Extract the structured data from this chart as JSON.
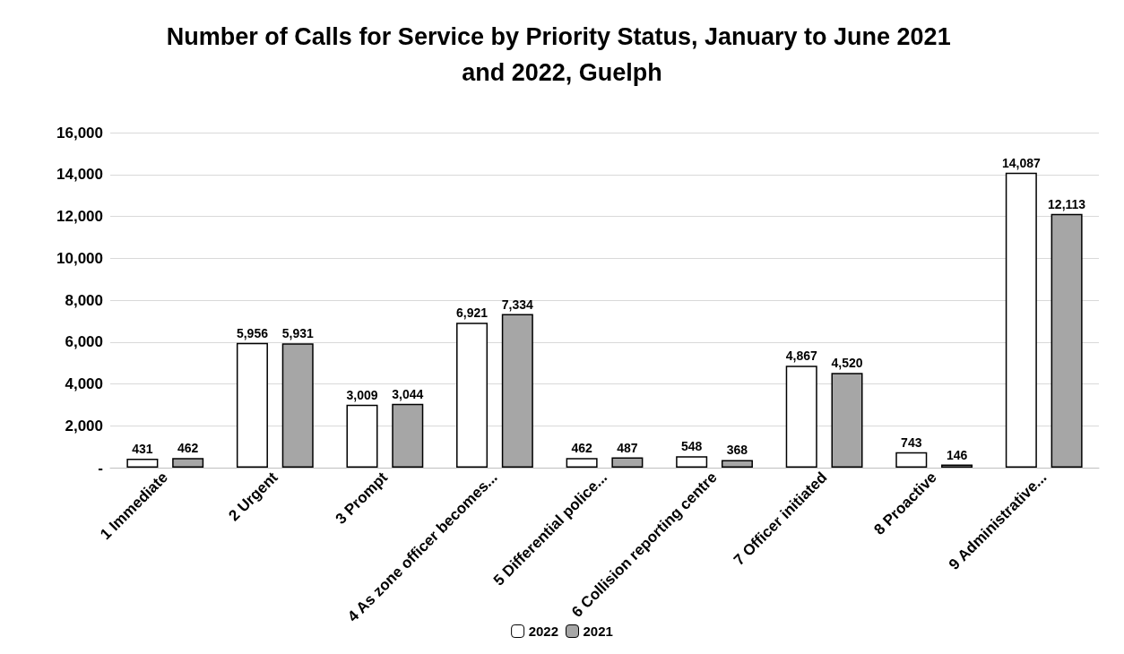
{
  "chart_data": {
    "type": "bar",
    "title": "Number of Calls for Service by Priority Status, January to June 2021 and 2022, Guelph",
    "categories": [
      "1 Immediate",
      "2 Urgent",
      "3 Prompt",
      "4 As zone officer becomes...",
      "5 Differential police...",
      "6 Collision reporting centre",
      "7 Officer initiated",
      "8 Proactive",
      "9 Administrative..."
    ],
    "series": [
      {
        "name": "2022",
        "color": "#ffffff",
        "values": [
          431,
          5956,
          3009,
          6921,
          462,
          548,
          4867,
          743,
          14087
        ],
        "value_labels": [
          "431",
          "5,956",
          "3,009",
          "6,921",
          "462",
          "548",
          "4,867",
          "743",
          "14,087"
        ]
      },
      {
        "name": "2021",
        "color": "#a6a6a6",
        "values": [
          462,
          5931,
          3044,
          7334,
          487,
          368,
          4520,
          146,
          12113
        ],
        "value_labels": [
          "462",
          "5,931",
          "3,044",
          "7,334",
          "487",
          "368",
          "4,520",
          "146",
          "12,113"
        ]
      }
    ],
    "ylim": [
      0,
      16000
    ],
    "yticks": [
      {
        "value": 0,
        "label": "-"
      },
      {
        "value": 2000,
        "label": "2,000"
      },
      {
        "value": 4000,
        "label": "4,000"
      },
      {
        "value": 6000,
        "label": "6,000"
      },
      {
        "value": 8000,
        "label": "8,000"
      },
      {
        "value": 10000,
        "label": "10,000"
      },
      {
        "value": 12000,
        "label": "12,000"
      },
      {
        "value": 14000,
        "label": "14,000"
      },
      {
        "value": 16000,
        "label": "16,000"
      }
    ],
    "grid": "y",
    "legend": "bottom"
  }
}
